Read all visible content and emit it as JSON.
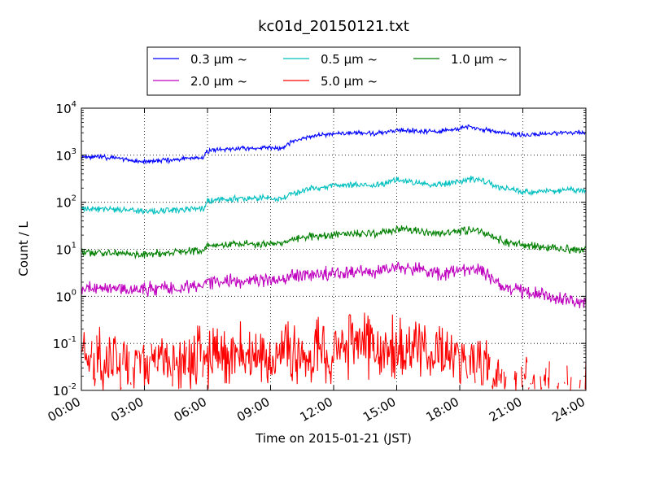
{
  "chart_data": {
    "type": "line",
    "title": "kc01d_20150121.txt",
    "xlabel": "Time on 2015-01-21 (JST)",
    "ylabel": "Count / L",
    "yscale": "log",
    "xlim_hours": [
      0,
      24
    ],
    "ylim": [
      0.01,
      10000
    ],
    "grid": true,
    "legend_position": "top-center",
    "x_ticks": [
      "00:00",
      "03:00",
      "06:00",
      "09:00",
      "12:00",
      "15:00",
      "18:00",
      "21:00",
      "24:00"
    ],
    "y_ticks": [
      {
        "base": "10",
        "exp": "-2"
      },
      {
        "base": "10",
        "exp": "-1"
      },
      {
        "base": "10",
        "exp": "0"
      },
      {
        "base": "10",
        "exp": "1"
      },
      {
        "base": "10",
        "exp": "2"
      },
      {
        "base": "10",
        "exp": "3"
      },
      {
        "base": "10",
        "exp": "4"
      }
    ],
    "x_hours": [
      0,
      1,
      2,
      2.5,
      3,
      4,
      5,
      5.8,
      6,
      7,
      8,
      9,
      9.5,
      10,
      11,
      12,
      13,
      14,
      15,
      16,
      17,
      18,
      18.5,
      19,
      19.5,
      20,
      21,
      22,
      23,
      24
    ],
    "series": [
      {
        "name": "0.3 µm ~",
        "color": "#0000ff",
        "values": [
          950,
          900,
          850,
          750,
          720,
          780,
          850,
          900,
          1250,
          1350,
          1400,
          1450,
          1350,
          1900,
          2600,
          2900,
          3000,
          2800,
          3500,
          3300,
          3200,
          3800,
          4000,
          3600,
          3300,
          3000,
          2700,
          2800,
          3100,
          3000
        ],
        "noise": 0.03
      },
      {
        "name": "0.5 µm ~",
        "color": "#00bfbf",
        "values": [
          75,
          72,
          70,
          66,
          64,
          66,
          70,
          75,
          110,
          115,
          120,
          125,
          115,
          150,
          200,
          230,
          240,
          220,
          300,
          260,
          230,
          280,
          310,
          300,
          240,
          200,
          170,
          170,
          180,
          190
        ],
        "noise": 0.04
      },
      {
        "name": "1.0 µm ~",
        "color": "#008000",
        "values": [
          8.5,
          8.3,
          8.2,
          8.0,
          8.0,
          8.5,
          9.0,
          9.5,
          12,
          12.5,
          13,
          13.5,
          12.5,
          16,
          19,
          20,
          21,
          21,
          27,
          24,
          21,
          24,
          27,
          25,
          20,
          15,
          12,
          11,
          10,
          9.5
        ],
        "noise": 0.05
      },
      {
        "name": "2.0 µm ~",
        "color": "#bf00bf",
        "values": [
          1.5,
          1.45,
          1.45,
          1.4,
          1.4,
          1.5,
          1.6,
          1.65,
          2.0,
          2.1,
          2.2,
          2.3,
          2.1,
          2.6,
          3.0,
          3.2,
          3.4,
          3.5,
          4.0,
          3.7,
          3.0,
          3.3,
          4.0,
          3.6,
          2.5,
          1.6,
          1.25,
          1.05,
          0.85,
          0.75
        ],
        "noise": 0.09
      },
      {
        "name": "5.0 µm ~",
        "color": "#ff0000",
        "values": [
          0.035,
          0.032,
          0.03,
          0.03,
          0.03,
          0.035,
          0.04,
          0.045,
          0.05,
          0.055,
          0.055,
          0.055,
          0.055,
          0.06,
          0.07,
          0.075,
          0.075,
          0.07,
          0.075,
          0.055,
          0.05,
          0.05,
          0.045,
          0.035,
          0.02,
          0.013,
          0.012,
          0.012,
          0.012,
          0.012
        ],
        "noise": 0.45
      }
    ]
  }
}
